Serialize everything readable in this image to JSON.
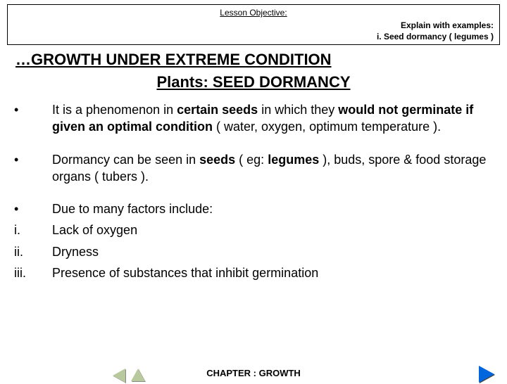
{
  "header": {
    "lesson_label": "Lesson Objective:",
    "right_line1": "Explain with examples:",
    "right_line2": "i. Seed dormancy ( legumes )"
  },
  "titles": {
    "main": "…GROWTH UNDER EXTREME CONDITION",
    "sub": "Plants: SEED DORMANCY"
  },
  "bullets": [
    {
      "marker": "•",
      "segments": [
        {
          "t": "It is a phenomenon in ",
          "b": false
        },
        {
          "t": "certain seeds",
          "b": true
        },
        {
          "t": " in which they ",
          "b": false
        },
        {
          "t": "would not germinate if given an optimal condition",
          "b": true
        },
        {
          "t": " ( water, oxygen, optimum temperature ).",
          "b": false
        }
      ],
      "tight": false
    },
    {
      "marker": "•",
      "segments": [
        {
          "t": "Dormancy can be seen in ",
          "b": false
        },
        {
          "t": "seeds",
          "b": true
        },
        {
          "t": " ( eg: ",
          "b": false
        },
        {
          "t": "legumes",
          "b": true
        },
        {
          "t": " ), buds, spore & food storage organs  ( tubers ).",
          "b": false
        }
      ],
      "tight": false
    },
    {
      "marker": "•",
      "segments": [
        {
          "t": "Due to many factors include:",
          "b": false
        }
      ],
      "tight": true
    },
    {
      "marker": "i.",
      "segments": [
        {
          "t": "Lack of oxygen",
          "b": false
        }
      ],
      "tight": true
    },
    {
      "marker": "ii.",
      "segments": [
        {
          "t": "Dryness",
          "b": false
        }
      ],
      "tight": true
    },
    {
      "marker": "iii.",
      "segments": [
        {
          "t": "Presence of substances that inhibit germination",
          "b": false
        }
      ],
      "tight": false
    }
  ],
  "footer": {
    "label": "CHAPTER : GROWTH"
  },
  "colors": {
    "nav_muted": "#b8c99d",
    "nav_active": "#0066dd"
  }
}
